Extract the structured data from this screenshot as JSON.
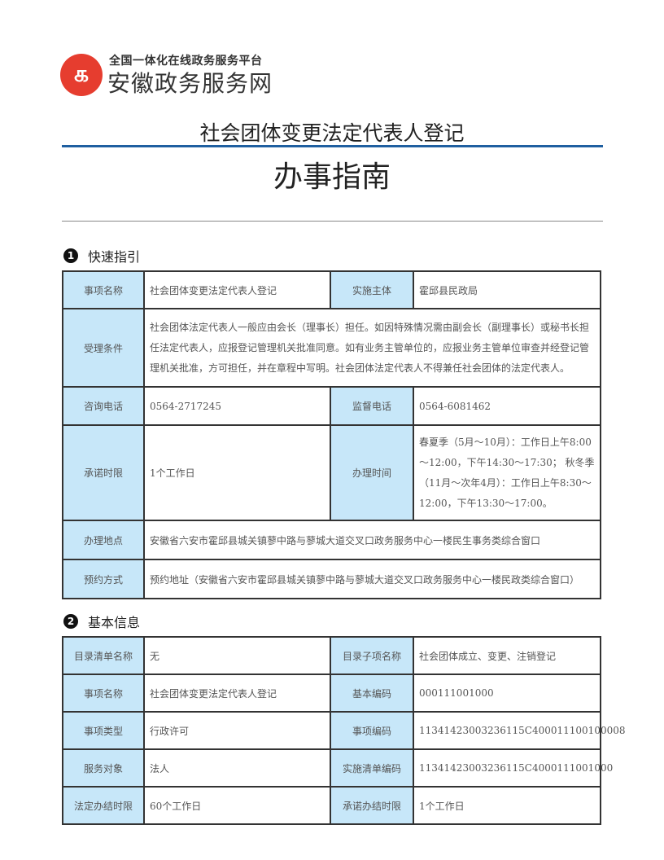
{
  "logo": {
    "platform": "全国一体化在线政务服务平台",
    "name": "安徽政务服务网"
  },
  "title": "社会团体变更法定代表人登记",
  "subtitle": "办事指南",
  "sections": [
    {
      "number": "1",
      "heading": "快速指引"
    },
    {
      "number": "2",
      "heading": "基本信息"
    }
  ],
  "quick": {
    "item_name_label": "事项名称",
    "item_name": "社会团体变更法定代表人登记",
    "subject_label": "实施主体",
    "subject": "霍邱县民政局",
    "condition_label": "受理条件",
    "condition": "社会团体法定代表人一般应由会长（理事长）担任。如因特殊情况需由副会长（副理事长）或秘书长担任法定代表人，应报登记管理机关批准同意。如有业务主管单位的，应报业务主管单位审查并经登记管理机关批准，方可担任，并在章程中写明。社会团体法定代表人不得兼任社会团体的法定代表人。",
    "phone_label": "咨询电话",
    "phone": "0564-2717245",
    "supervise_label": "监督电话",
    "supervise": "0564-6081462",
    "promise_label": "承诺时限",
    "promise": "1个工作日",
    "hours_label": "办理时间",
    "hours": "春夏季（5月～10月）：工作日上午8:00～12:00，下午14:30～17:30； 秋冬季（11月～次年4月）：工作日上午8:30～12:00，下午13:30～17:00。",
    "place_label": "办理地点",
    "place": "安徽省六安市霍邱县城关镇蓼中路与蓼城大道交叉口政务服务中心一楼民生事务类综合窗口",
    "booking_label": "预约方式",
    "booking": "预约地址（安徽省六安市霍邱县城关镇蓼中路与蓼城大道交叉口政务服务中心一楼民政类综合窗口）"
  },
  "basic": {
    "rows": [
      [
        "目录清单名称",
        "无",
        "目录子项名称",
        "社会团体成立、变更、注销登记"
      ],
      [
        "事项名称",
        "社会团体变更法定代表人登记",
        "基本编码",
        "000111001000"
      ],
      [
        "事项类型",
        "行政许可",
        "事项编码",
        "11341423003236115C400011100100008"
      ],
      [
        "服务对象",
        "法人",
        "实施清单编码",
        "11341423003236115C4000111001000"
      ],
      [
        "法定办结时限",
        "60个工作日",
        "承诺办结时限",
        "1个工作日"
      ]
    ]
  }
}
